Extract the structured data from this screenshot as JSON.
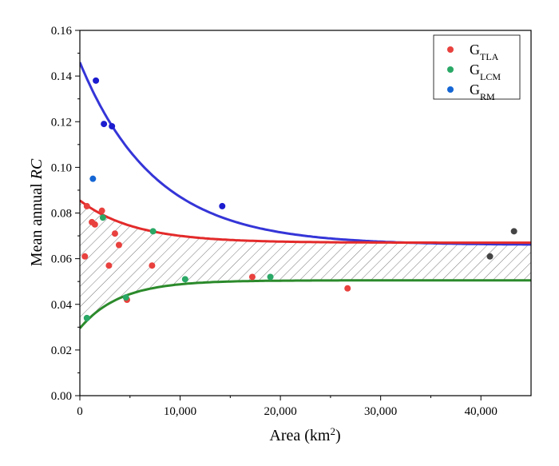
{
  "chart_data": {
    "type": "scatter",
    "xlabel": {
      "text": "Area (km",
      "sup": "2",
      "suffix": ")"
    },
    "ylabel": {
      "text": "Mean annual ",
      "italic": "RC"
    },
    "xlim": [
      0,
      45000
    ],
    "ylim": [
      0,
      0.16
    ],
    "x_ticks": [
      0,
      10000,
      20000,
      30000,
      40000
    ],
    "x_tick_labels": [
      "0",
      "10,000",
      "20,000",
      "30,000",
      "40,000"
    ],
    "y_ticks": [
      0.0,
      0.02,
      0.04,
      0.06,
      0.08,
      0.1,
      0.12,
      0.14,
      0.16
    ],
    "y_tick_labels": [
      "0.00",
      "0.02",
      "0.04",
      "0.06",
      "0.08",
      "0.10",
      "0.12",
      "0.14",
      "0.16"
    ],
    "grid": false,
    "legend_position": "top-right",
    "series": [
      {
        "name": "G",
        "sub": "TLA",
        "color": "#e8413e",
        "points": [
          [
            500,
            0.061
          ],
          [
            700,
            0.083
          ],
          [
            1200,
            0.076
          ],
          [
            1500,
            0.075
          ],
          [
            2200,
            0.081
          ],
          [
            2900,
            0.057
          ],
          [
            3500,
            0.071
          ],
          [
            3900,
            0.066
          ],
          [
            4700,
            0.042
          ],
          [
            7200,
            0.057
          ],
          [
            17200,
            0.052
          ],
          [
            26700,
            0.047
          ]
        ]
      },
      {
        "name": "G",
        "sub": "LCM",
        "color": "#2aa866",
        "points": [
          [
            700,
            0.034
          ],
          [
            2300,
            0.078
          ],
          [
            4600,
            0.043
          ],
          [
            7300,
            0.072
          ],
          [
            10500,
            0.051
          ],
          [
            19000,
            0.052
          ]
        ]
      },
      {
        "name": "G",
        "sub": "RM",
        "color": "#1566d4",
        "points": [
          [
            1300,
            0.095
          ]
        ]
      }
    ],
    "extra_points": [
      {
        "color": "#1c1ccf",
        "points": [
          [
            1600,
            0.138
          ],
          [
            2400,
            0.119
          ],
          [
            3200,
            0.118
          ],
          [
            14200,
            0.083
          ]
        ]
      },
      {
        "color": "#444444",
        "points": [
          [
            40900,
            0.061
          ],
          [
            43300,
            0.072
          ]
        ]
      }
    ],
    "curves": [
      {
        "color": "#3535d8",
        "asymptote": 0.066,
        "start": 0.146,
        "decay": 7500
      },
      {
        "color": "#e32a2a",
        "asymptote": 0.067,
        "start": 0.0855,
        "decay": 5500
      },
      {
        "color": "#2b8a2b",
        "asymptote": 0.0505,
        "start": 0.0295,
        "decay": 4000
      }
    ],
    "hatch_between": [
      1,
      2
    ]
  }
}
